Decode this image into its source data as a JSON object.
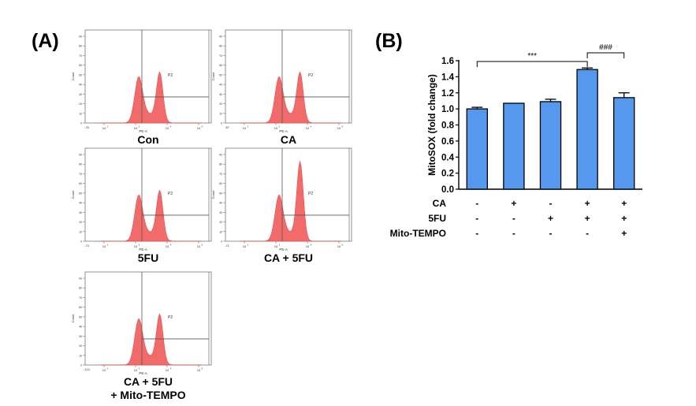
{
  "panels": {
    "a_label": "(A)",
    "b_label": "(B)"
  },
  "chart_data": [
    {
      "type": "histogram",
      "panel": "(A)",
      "histograms": [
        {
          "caption": [
            "Con"
          ],
          "gate_label": "P2",
          "xlabel": "PE-A",
          "ylabel": "Count",
          "x_min_tick": "-76"
        },
        {
          "caption": [
            "CA"
          ],
          "gate_label": "P2",
          "xlabel": "PE-A",
          "ylabel": "Count",
          "x_min_tick": "-67"
        },
        {
          "caption": [
            "5FU"
          ],
          "gate_label": "P2",
          "xlabel": "PE-A",
          "ylabel": "Count",
          "x_min_tick": "-73"
        },
        {
          "caption": [
            "CA + 5FU"
          ],
          "gate_label": "P2",
          "xlabel": "PE-A",
          "ylabel": "Count",
          "x_min_tick": "-71"
        },
        {
          "caption": [
            "CA + 5FU",
            "+ Mito-TEMPO"
          ],
          "gate_label": "P2",
          "xlabel": "PE-A",
          "ylabel": "Count",
          "x_min_tick": "-113"
        }
      ],
      "x_ticks": [
        "10",
        "2",
        "10",
        "3",
        "10",
        "4",
        "10",
        "5"
      ],
      "y_ticks": [
        "0",
        "10",
        "20",
        "30",
        "40",
        "50",
        "60",
        "70",
        "80",
        "90"
      ],
      "fill_color": "#f26b6b"
    },
    {
      "type": "bar",
      "panel": "(B)",
      "ylabel": "MitoSOX (fold change)",
      "ylim": [
        0,
        1.6
      ],
      "yticks": [
        "0.0",
        "0.2",
        "0.4",
        "0.6",
        "0.8",
        "1.0",
        "1.2",
        "1.4",
        "1.6"
      ],
      "values": [
        1.0,
        1.07,
        1.09,
        1.49,
        1.14
      ],
      "errors": [
        0.02,
        0.0,
        0.03,
        0.02,
        0.06
      ],
      "bar_color": "#5599ee",
      "conditions": [
        {
          "label": "CA",
          "marks": [
            "-",
            "+",
            "-",
            "+",
            "+"
          ]
        },
        {
          "label": "5FU",
          "marks": [
            "-",
            "-",
            "+",
            "+",
            "+"
          ]
        },
        {
          "label": "Mito-TEMPO",
          "marks": [
            "-",
            "-",
            "-",
            "-",
            "+"
          ]
        }
      ],
      "significance": [
        {
          "from": 0,
          "to": 3,
          "label": "***"
        },
        {
          "from": 3,
          "to": 4,
          "label": "###"
        }
      ]
    }
  ]
}
